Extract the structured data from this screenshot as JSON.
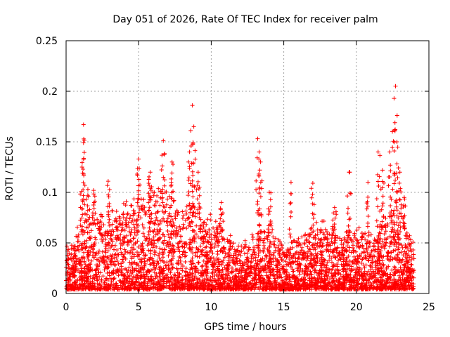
{
  "chart_data": {
    "type": "scatter",
    "title": "Day 051 of 2026, Rate Of TEC Index for receiver palm",
    "xlabel": "GPS time / hours",
    "ylabel": "ROTI / TECUs",
    "xlim": [
      0,
      25
    ],
    "ylim": [
      0,
      0.25
    ],
    "xticks": [
      "0",
      "5",
      "10",
      "15",
      "20",
      "25"
    ],
    "yticks": [
      "0",
      "0.05",
      "0.1",
      "0.15",
      "0.2",
      "0.25"
    ],
    "xtick_values": [
      0,
      5,
      10,
      15,
      20,
      25
    ],
    "ytick_values": [
      0,
      0.05,
      0.1,
      0.15,
      0.2,
      0.25
    ],
    "grid": true,
    "marker": "+",
    "color": "#ff0000",
    "series": [
      {
        "name": "ROTI",
        "x_range": [
          0,
          24
        ],
        "typical_envelope": [
          {
            "x": 0.0,
            "y": 0.04
          },
          {
            "x": 1.0,
            "y": 0.06
          },
          {
            "x": 2.0,
            "y": 0.07
          },
          {
            "x": 3.0,
            "y": 0.07
          },
          {
            "x": 4.0,
            "y": 0.08
          },
          {
            "x": 5.0,
            "y": 0.09
          },
          {
            "x": 6.0,
            "y": 0.09
          },
          {
            "x": 7.0,
            "y": 0.09
          },
          {
            "x": 8.0,
            "y": 0.08
          },
          {
            "x": 9.0,
            "y": 0.08
          },
          {
            "x": 10.0,
            "y": 0.07
          },
          {
            "x": 11.0,
            "y": 0.06
          },
          {
            "x": 12.0,
            "y": 0.04
          },
          {
            "x": 13.0,
            "y": 0.05
          },
          {
            "x": 14.0,
            "y": 0.06
          },
          {
            "x": 15.0,
            "y": 0.04
          },
          {
            "x": 16.0,
            "y": 0.05
          },
          {
            "x": 17.0,
            "y": 0.06
          },
          {
            "x": 18.0,
            "y": 0.06
          },
          {
            "x": 19.0,
            "y": 0.05
          },
          {
            "x": 20.0,
            "y": 0.06
          },
          {
            "x": 21.0,
            "y": 0.05
          },
          {
            "x": 22.0,
            "y": 0.07
          },
          {
            "x": 23.0,
            "y": 0.07
          },
          {
            "x": 24.0,
            "y": 0.05
          }
        ],
        "peaks": [
          {
            "x": 1.2,
            "y": 0.167
          },
          {
            "x": 1.2,
            "y": 0.149
          },
          {
            "x": 1.1,
            "y": 0.125
          },
          {
            "x": 1.5,
            "y": 0.103
          },
          {
            "x": 1.9,
            "y": 0.102
          },
          {
            "x": 2.9,
            "y": 0.111
          },
          {
            "x": 5.0,
            "y": 0.133
          },
          {
            "x": 5.8,
            "y": 0.12
          },
          {
            "x": 6.7,
            "y": 0.151
          },
          {
            "x": 7.3,
            "y": 0.13
          },
          {
            "x": 8.5,
            "y": 0.14
          },
          {
            "x": 8.7,
            "y": 0.186
          },
          {
            "x": 8.8,
            "y": 0.165
          },
          {
            "x": 9.1,
            "y": 0.12
          },
          {
            "x": 10.7,
            "y": 0.09
          },
          {
            "x": 13.2,
            "y": 0.153
          },
          {
            "x": 13.3,
            "y": 0.14
          },
          {
            "x": 13.4,
            "y": 0.13
          },
          {
            "x": 14.0,
            "y": 0.1
          },
          {
            "x": 15.5,
            "y": 0.11
          },
          {
            "x": 17.0,
            "y": 0.109
          },
          {
            "x": 18.5,
            "y": 0.085
          },
          {
            "x": 19.5,
            "y": 0.12
          },
          {
            "x": 20.8,
            "y": 0.11
          },
          {
            "x": 21.5,
            "y": 0.14
          },
          {
            "x": 21.8,
            "y": 0.122
          },
          {
            "x": 22.3,
            "y": 0.14
          },
          {
            "x": 22.6,
            "y": 0.193
          },
          {
            "x": 22.7,
            "y": 0.205
          },
          {
            "x": 22.8,
            "y": 0.15
          },
          {
            "x": 23.0,
            "y": 0.12
          },
          {
            "x": 23.3,
            "y": 0.095
          }
        ]
      }
    ]
  }
}
